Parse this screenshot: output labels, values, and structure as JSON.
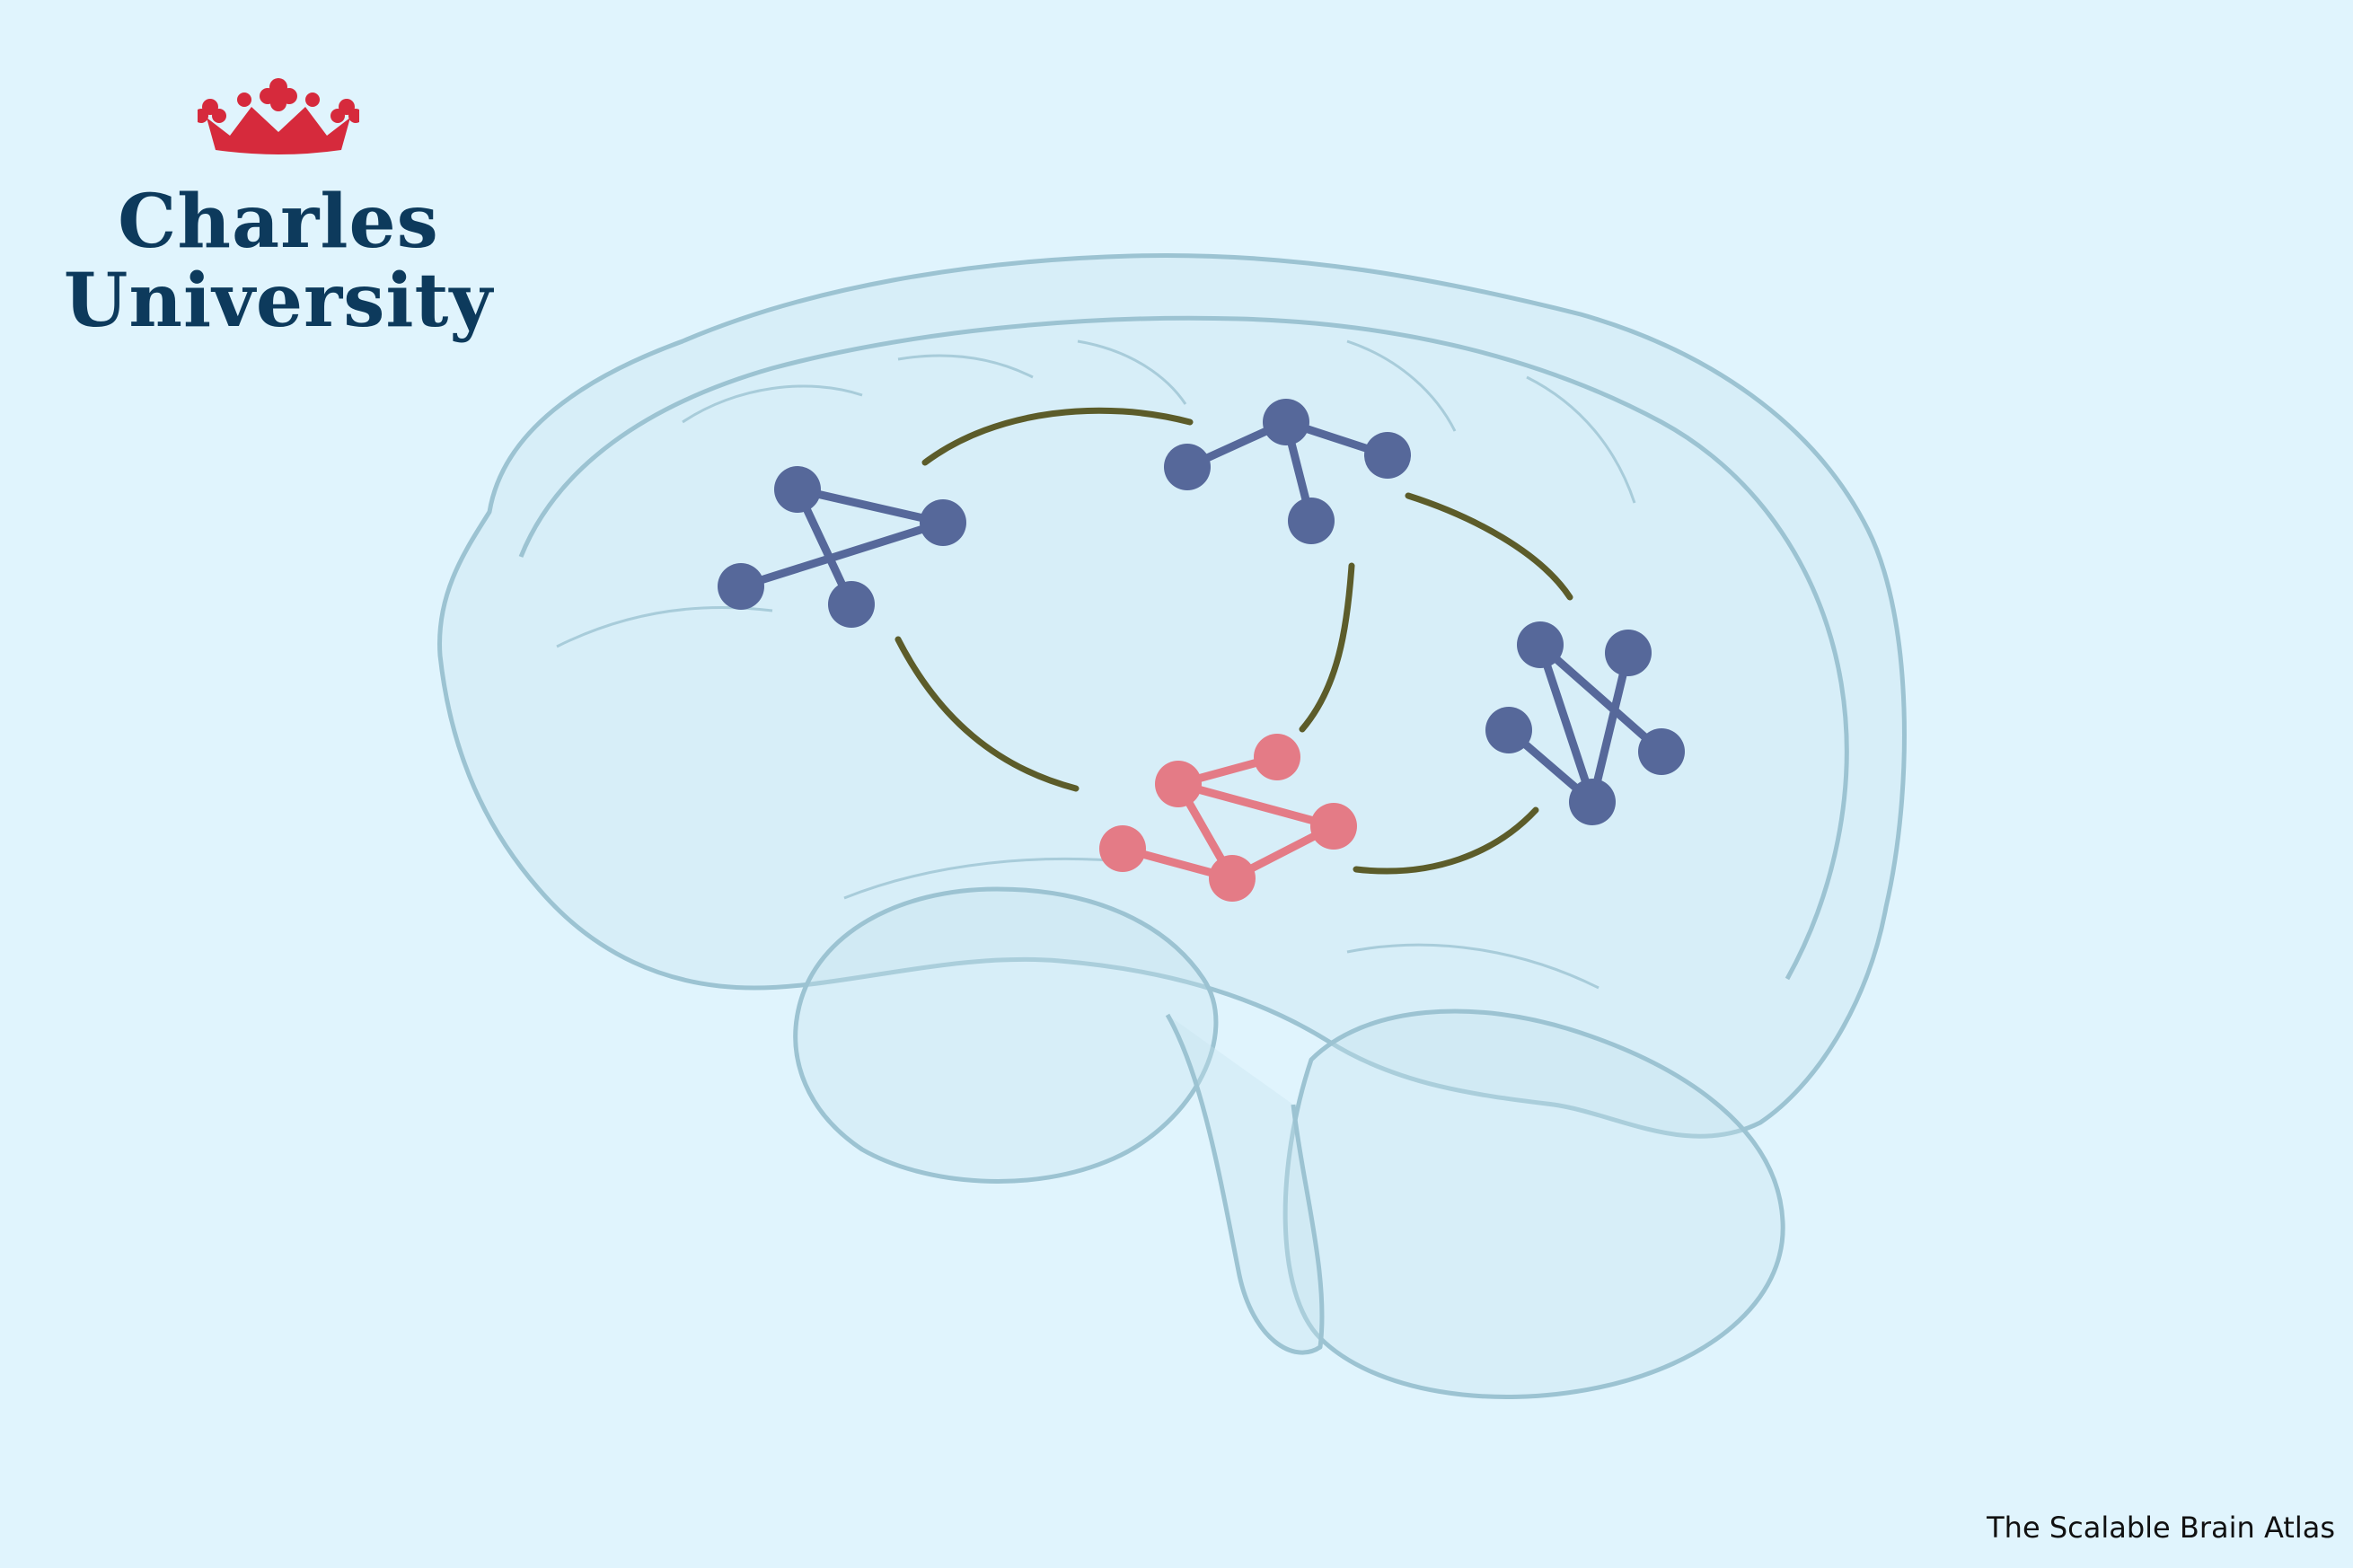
{
  "logo": {
    "line1": "Charles",
    "line2": "University",
    "icon": "crown-icon",
    "crown_color": "#d62a3c",
    "text_color": "#0d3a5c"
  },
  "credit": "The Scalable Brain Atlas",
  "colors": {
    "background": "#e0f4fd",
    "network_nodes": "#56689a",
    "core_network": "#e47b86",
    "connections": "#5c5c2a",
    "brain_outline": "#9cc3d2"
  }
}
